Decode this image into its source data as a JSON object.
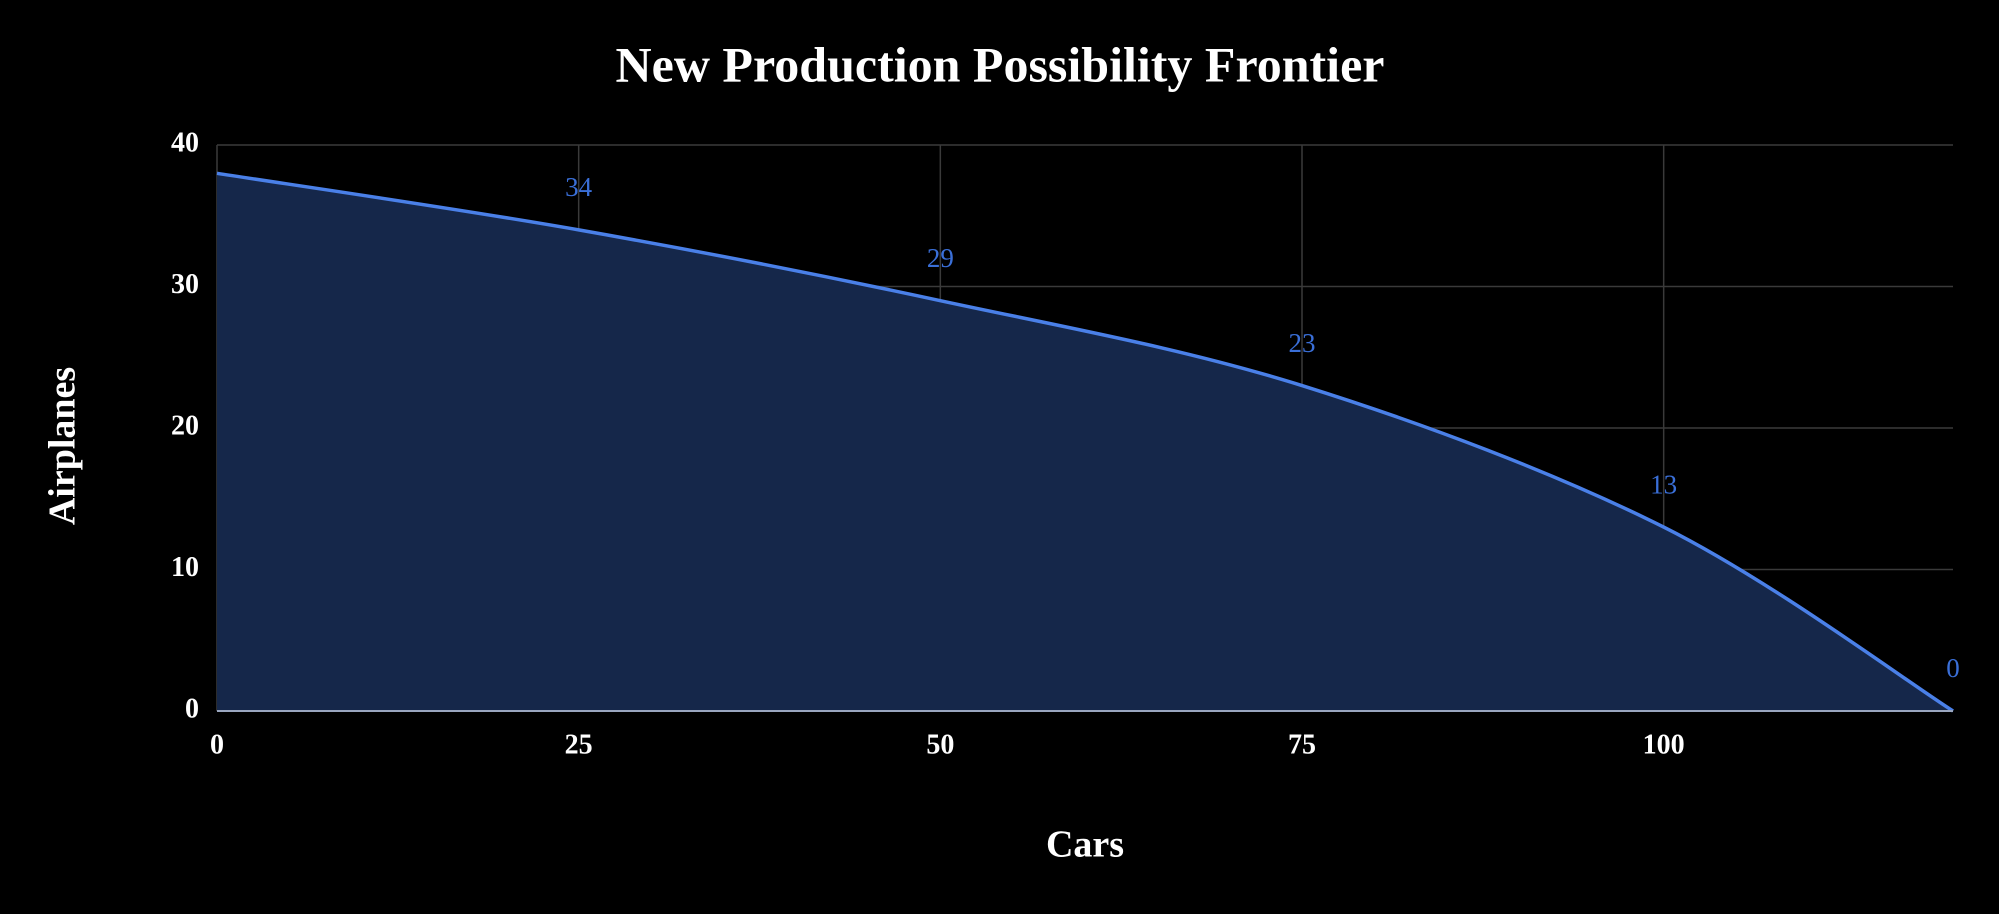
{
  "chart_data": {
    "type": "area",
    "title": "New Production Possibility Frontier",
    "x_label": "Cars",
    "y_label": "Airplanes",
    "x": [
      0,
      25,
      50,
      75,
      100,
      120
    ],
    "series": [
      {
        "name": "Airplanes",
        "color": "#4a80e8",
        "fill": "#15274a",
        "values": [
          38,
          34,
          29,
          23,
          13,
          0
        ],
        "value_labels": [
          null,
          "34",
          "29",
          "23",
          "13",
          "0"
        ]
      }
    ],
    "xlim": [
      0,
      120
    ],
    "xticks": [
      0,
      25,
      50,
      75,
      100
    ],
    "ylim": [
      0,
      40
    ],
    "yticks": [
      0,
      10,
      20,
      30,
      40
    ],
    "grid": true
  }
}
